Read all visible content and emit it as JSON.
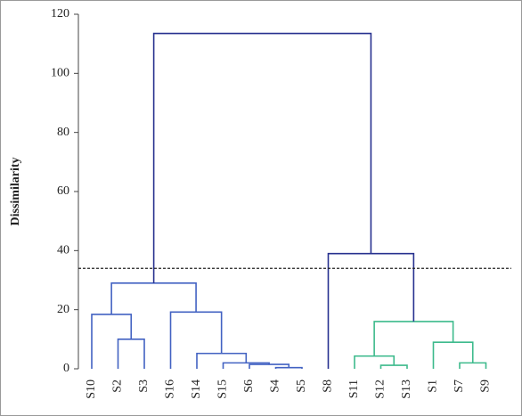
{
  "chart_data": {
    "type": "dendrogram",
    "y_label": "Dissimilarity",
    "leaves": [
      "S10",
      "S2",
      "S3",
      "S16",
      "S14",
      "S15",
      "S6",
      "S4",
      "S5",
      "S8",
      "S11",
      "S12",
      "S13",
      "S1",
      "S7",
      "S9"
    ],
    "merges": [
      {
        "left": 1,
        "right": 2,
        "height": 10,
        "color": "#4262c2"
      },
      {
        "left": 0,
        "right": 16,
        "height": 18.4,
        "color": "#4262c2"
      },
      {
        "left": 7,
        "right": 8,
        "height": 0.4,
        "color": "#4262c2"
      },
      {
        "left": 6,
        "right": 18,
        "height": 1.5,
        "color": "#4262c2"
      },
      {
        "left": 5,
        "right": 19,
        "height": 2,
        "color": "#4262c2"
      },
      {
        "left": 4,
        "right": 20,
        "height": 5.2,
        "color": "#4262c2"
      },
      {
        "left": 3,
        "right": 21,
        "height": 19.2,
        "color": "#4262c2"
      },
      {
        "left": 17,
        "right": 22,
        "height": 29,
        "color": "#4262c2"
      },
      {
        "left": 11,
        "right": 12,
        "height": 1.2,
        "color": "#3dba8c"
      },
      {
        "left": 10,
        "right": 24,
        "height": 4.3,
        "color": "#3dba8c"
      },
      {
        "left": 14,
        "right": 15,
        "height": 2,
        "color": "#3dba8c"
      },
      {
        "left": 13,
        "right": 26,
        "height": 9,
        "color": "#3dba8c"
      },
      {
        "left": 25,
        "right": 27,
        "height": 16,
        "color": "#3dba8c"
      },
      {
        "left": 9,
        "right": 28,
        "height": 39,
        "color": "#27318f"
      },
      {
        "left": 23,
        "right": 29,
        "height": 113.5,
        "color": "#27318f"
      }
    ],
    "threshold": 34,
    "ylim": [
      0,
      120
    ],
    "yticks": [
      0,
      20,
      40,
      60,
      80,
      100,
      120
    ]
  }
}
